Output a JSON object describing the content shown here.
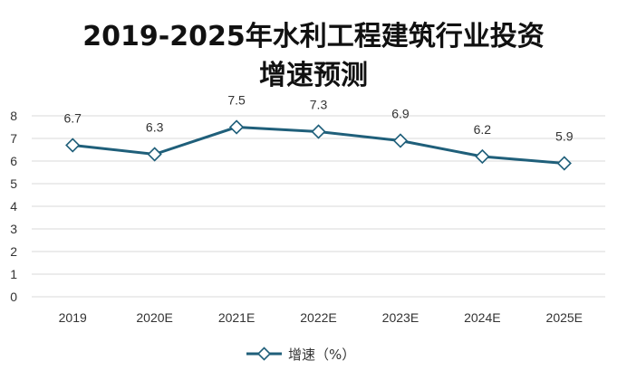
{
  "chart_data": {
    "type": "line",
    "title_line1": "2019-2025年水利工程建筑行业投资",
    "title_line2": "增速预测",
    "categories": [
      "2019",
      "2020E",
      "2021E",
      "2022E",
      "2023E",
      "2024E",
      "2025E"
    ],
    "series": [
      {
        "name": "增速（%）",
        "values": [
          6.7,
          6.3,
          7.5,
          7.3,
          6.9,
          6.2,
          5.9
        ],
        "color": "#1f5f7a"
      }
    ],
    "ylim": [
      0,
      8
    ],
    "yticks": [
      0,
      1,
      2,
      3,
      4,
      5,
      6,
      7,
      8
    ],
    "grid": true,
    "legend_position": "bottom-center",
    "data_labels": [
      "6.7",
      "6.3",
      "7.5",
      "7.3",
      "6.9",
      "6.2",
      "5.9"
    ]
  }
}
